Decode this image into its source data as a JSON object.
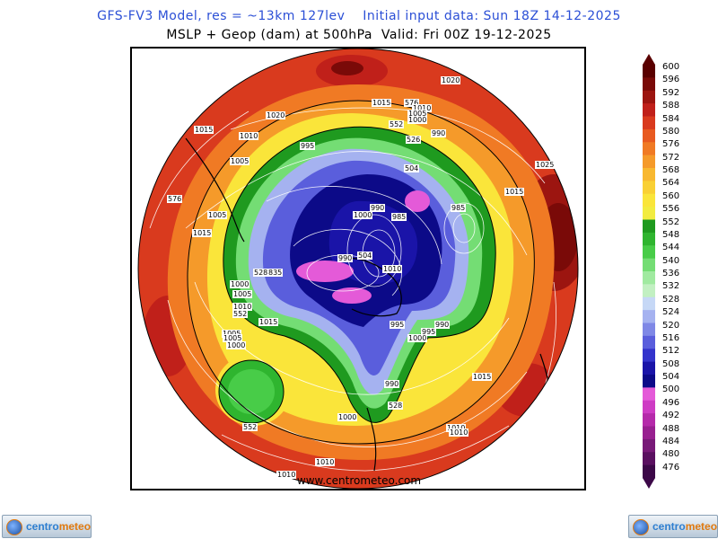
{
  "header": {
    "title_line1": "GFS-FV3 Model, res = ~13km 127lev    Initial input data: Sun 18Z 14-12-2025",
    "title_line2": "MSLP + Geop (dam) at 500hPa  Valid: Fri 00Z 19-12-2025"
  },
  "map": {
    "projection": "polar stereographic (south pole)",
    "pressure_labels": [
      {
        "text": "1020"
      },
      {
        "text": "1015"
      },
      {
        "text": "576"
      },
      {
        "text": "1010"
      },
      {
        "text": "1005"
      },
      {
        "text": "1000"
      },
      {
        "text": "1020"
      },
      {
        "text": "1015"
      },
      {
        "text": "1010"
      },
      {
        "text": "995"
      },
      {
        "text": "552"
      },
      {
        "text": "526"
      },
      {
        "text": "990"
      },
      {
        "text": "1005"
      },
      {
        "text": "504"
      },
      {
        "text": "1025"
      },
      {
        "text": "1015"
      },
      {
        "text": "576"
      },
      {
        "text": "1005"
      },
      {
        "text": "1015"
      },
      {
        "text": "990"
      },
      {
        "text": "985"
      },
      {
        "text": "985"
      },
      {
        "text": "1000"
      },
      {
        "text": "990"
      },
      {
        "text": "504"
      },
      {
        "text": "1010"
      },
      {
        "text": "528"
      },
      {
        "text": "835"
      },
      {
        "text": "1000"
      },
      {
        "text": "1005"
      },
      {
        "text": "1010"
      },
      {
        "text": "552"
      },
      {
        "text": "1005"
      },
      {
        "text": "1015"
      },
      {
        "text": "995"
      },
      {
        "text": "990"
      },
      {
        "text": "995"
      },
      {
        "text": "1000"
      },
      {
        "text": "1005"
      },
      {
        "text": "1000"
      },
      {
        "text": "990"
      },
      {
        "text": "1015"
      },
      {
        "text": "528"
      },
      {
        "text": "1000"
      },
      {
        "text": "1010"
      },
      {
        "text": "552"
      },
      {
        "text": "1010"
      },
      {
        "text": "1010"
      },
      {
        "text": "1010"
      }
    ],
    "credit": "www.centrometeo.com"
  },
  "colorbar": {
    "unit": "dam",
    "levels": [
      600,
      596,
      592,
      588,
      584,
      580,
      576,
      572,
      568,
      564,
      560,
      556,
      552,
      548,
      544,
      540,
      536,
      532,
      528,
      524,
      520,
      516,
      512,
      508,
      504,
      500,
      496,
      492,
      488,
      484,
      480,
      476
    ],
    "colors": [
      "#5a0000",
      "#7a0a08",
      "#9c1510",
      "#c0201a",
      "#d93a1e",
      "#e85a20",
      "#f07a24",
      "#f59a2a",
      "#f8b830",
      "#f9d034",
      "#fae53a",
      "#f2ec40",
      "#1f9a1f",
      "#2fb52f",
      "#48cc48",
      "#74dd74",
      "#a0eaa0",
      "#c2f0c2",
      "#c6d8f6",
      "#a5b2f0",
      "#7f88e6",
      "#5a5edc",
      "#3434cc",
      "#1a14a8",
      "#0c0a88",
      "#e45ad8",
      "#ce3cc4",
      "#b52aaa",
      "#982090",
      "#781a78",
      "#5a1060",
      "#3c0848"
    ]
  },
  "branding": {
    "logo_left": {
      "word1": "centro",
      "word2": "meteo"
    },
    "logo_right": {
      "word1": "centro",
      "word2": "meteo"
    }
  },
  "colors": {
    "title_blue": "#2b4fd6",
    "contour_white": "#ffffff",
    "contour_black": "#000000"
  }
}
